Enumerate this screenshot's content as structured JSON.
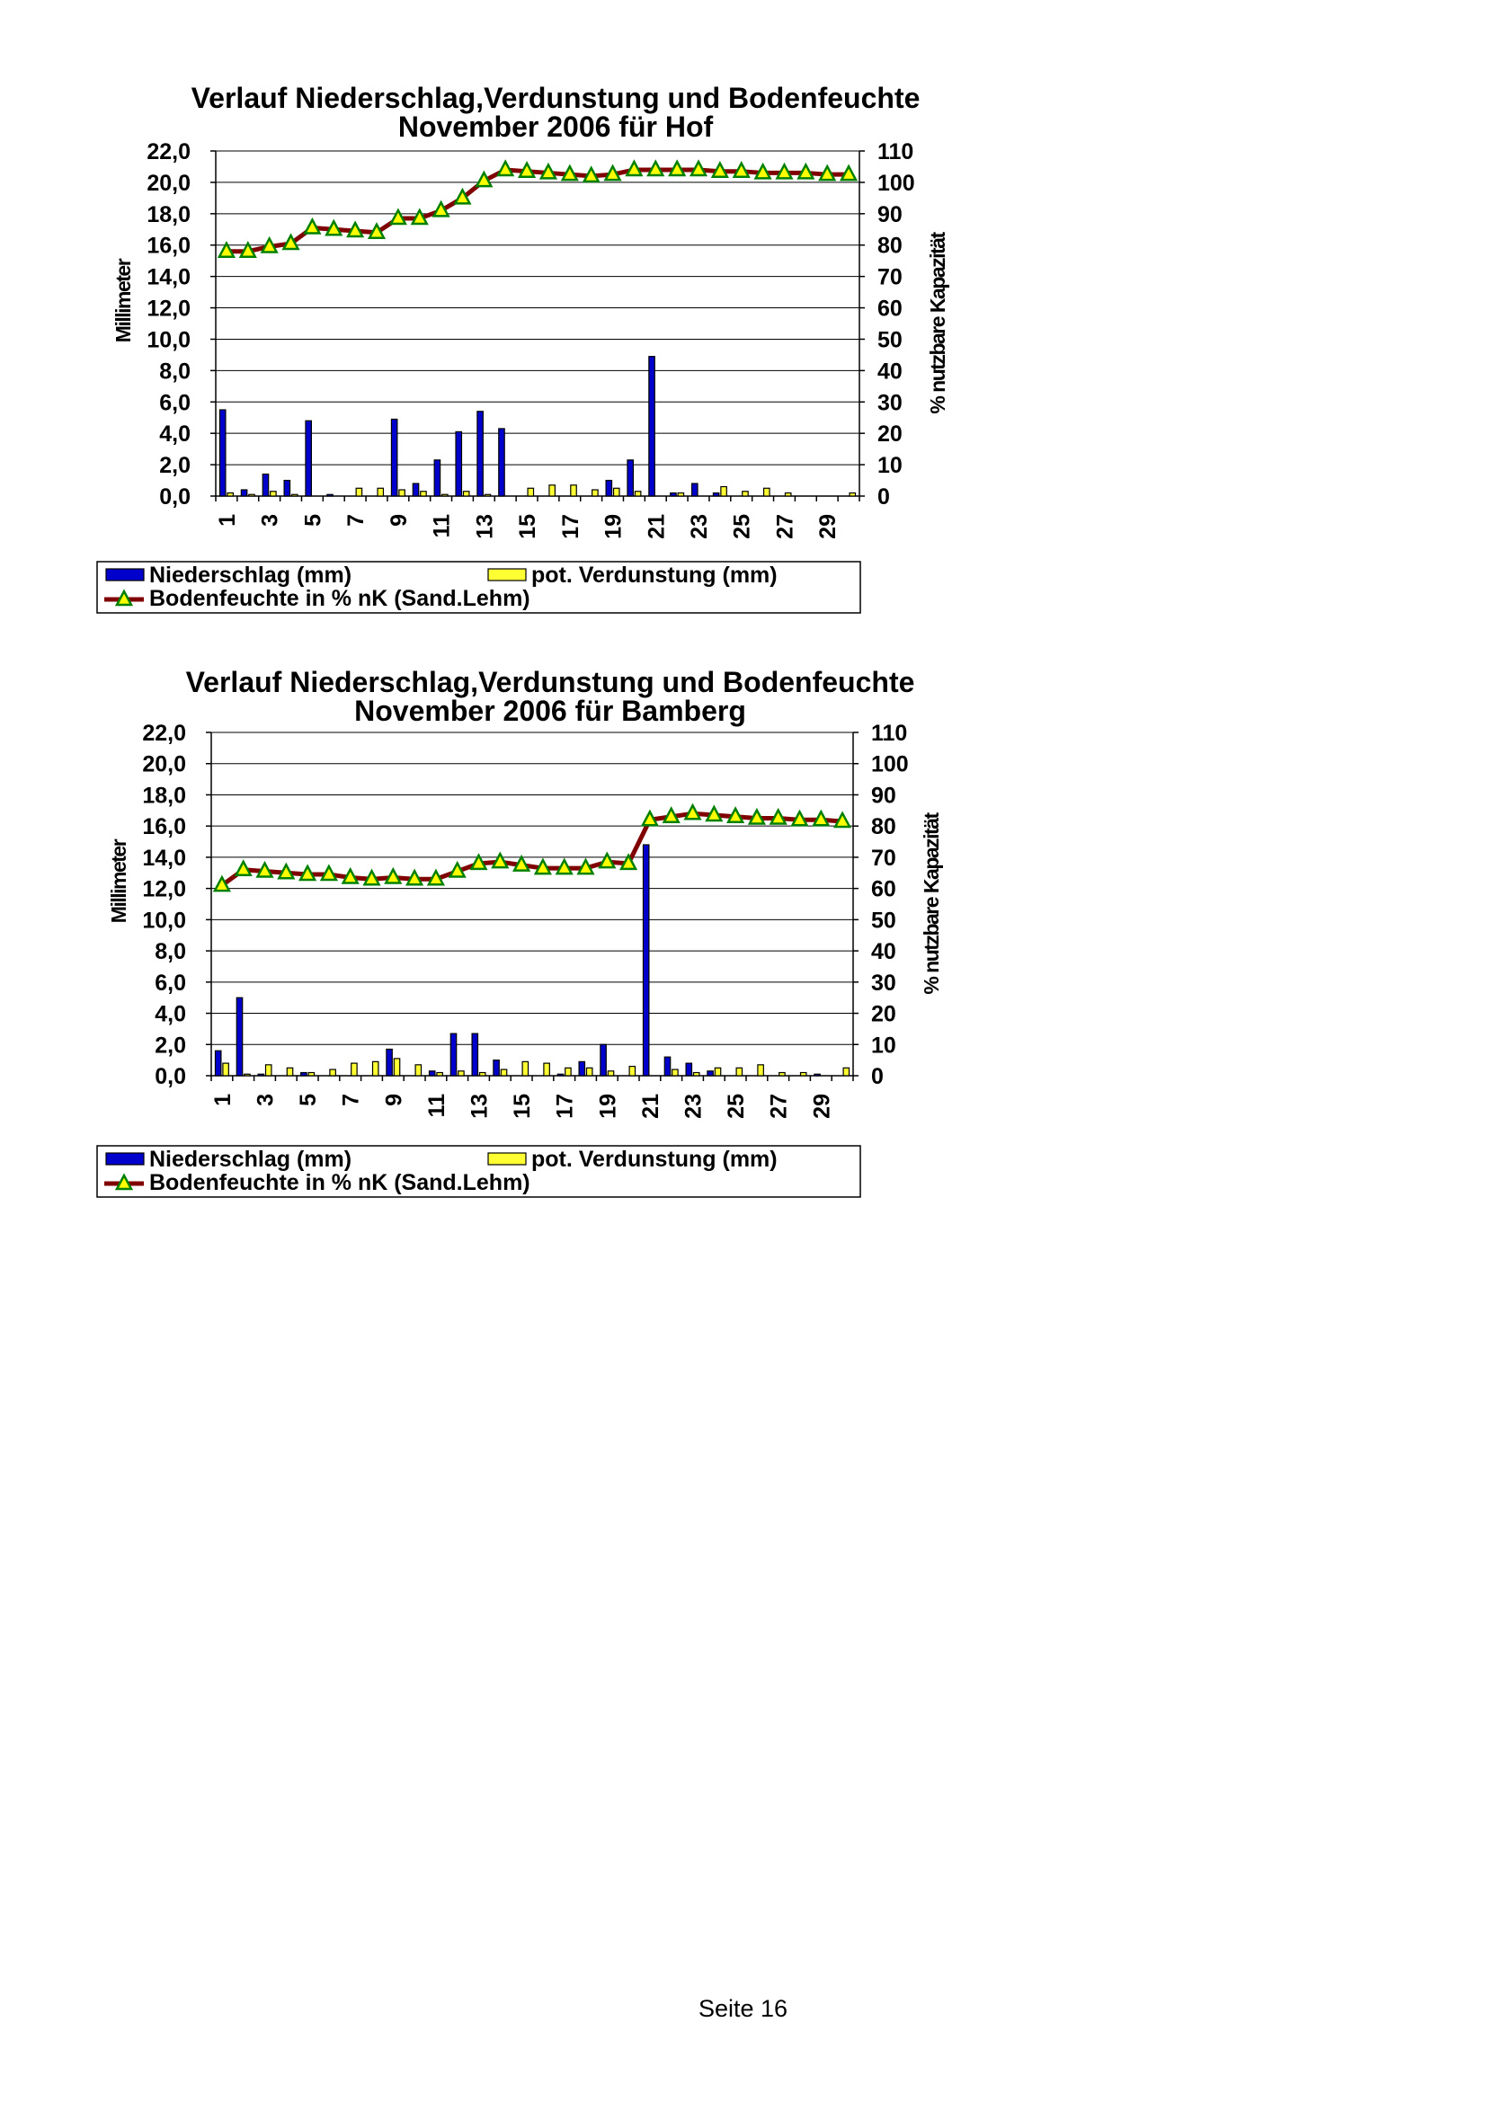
{
  "page": {
    "footer": "Seite 16"
  },
  "colors": {
    "precip": "#0000cc",
    "evap": "#ffff33",
    "soil_line": "#800000",
    "soil_marker": "#ffff00",
    "soil_marker_border": "#008000"
  },
  "chart_data": [
    {
      "type": "bar+line",
      "title_line1": "Verlauf Niederschlag,Verdunstung und Bodenfeuchte",
      "title_line2": "November 2006 für Hof",
      "ylabel": "Millimeter",
      "y2label": "% nutzbare Kapazität",
      "ylim": [
        0,
        22
      ],
      "y2lim": [
        0,
        110
      ],
      "y_ticks": [
        "0,0",
        "2,0",
        "4,0",
        "6,0",
        "8,0",
        "10,0",
        "12,0",
        "14,0",
        "16,0",
        "18,0",
        "20,0",
        "22,0"
      ],
      "y2_ticks": [
        "0",
        "10",
        "20",
        "30",
        "40",
        "50",
        "60",
        "70",
        "80",
        "90",
        "100",
        "110"
      ],
      "x_ticks": [
        "1",
        "3",
        "5",
        "7",
        "9",
        "11",
        "13",
        "15",
        "17",
        "19",
        "21",
        "23",
        "25",
        "27",
        "29"
      ],
      "days": [
        1,
        2,
        3,
        4,
        5,
        6,
        7,
        8,
        9,
        10,
        11,
        12,
        13,
        14,
        15,
        16,
        17,
        18,
        19,
        20,
        21,
        22,
        23,
        24,
        25,
        26,
        27,
        28,
        29,
        30
      ],
      "series": [
        {
          "name": "Niederschlag (mm)",
          "kind": "bar",
          "values": [
            5.5,
            0.4,
            1.4,
            1.0,
            4.8,
            0.1,
            0,
            0,
            4.9,
            0.8,
            2.3,
            4.1,
            5.4,
            4.3,
            0,
            0,
            0,
            0,
            1.0,
            2.3,
            8.9,
            0.2,
            0.8,
            0.2,
            0,
            0,
            0,
            0,
            0,
            0
          ]
        },
        {
          "name": "pot. Verdunstung (mm)",
          "kind": "bar",
          "values": [
            0.2,
            0.1,
            0.3,
            0.1,
            0,
            0,
            0.5,
            0.5,
            0.4,
            0.3,
            0.1,
            0.3,
            0.1,
            0,
            0.5,
            0.7,
            0.7,
            0.4,
            0.5,
            0.3,
            0,
            0.2,
            0,
            0.6,
            0.3,
            0.5,
            0.2,
            0,
            0,
            0.2
          ]
        },
        {
          "name": "Bodenfeuchte in % nK (Sand.Lehm)",
          "kind": "line",
          "values": [
            78,
            78,
            79.5,
            80.5,
            85.5,
            85,
            84.5,
            84,
            88.5,
            88.5,
            91,
            95,
            100.5,
            104,
            103.5,
            103,
            102.5,
            102,
            102.5,
            104,
            104,
            104,
            104,
            103.5,
            103.5,
            103,
            103,
            103,
            102.5,
            102.5
          ]
        }
      ]
    },
    {
      "type": "bar+line",
      "title_line1": "Verlauf Niederschlag,Verdunstung und Bodenfeuchte",
      "title_line2": "November 2006 für Bamberg",
      "ylabel": "Millimeter",
      "y2label": "% nutzbare Kapazität",
      "ylim": [
        0,
        22
      ],
      "y2lim": [
        0,
        110
      ],
      "y_ticks": [
        "0,0",
        "2,0",
        "4,0",
        "6,0",
        "8,0",
        "10,0",
        "12,0",
        "14,0",
        "16,0",
        "18,0",
        "20,0",
        "22,0"
      ],
      "y2_ticks": [
        "0",
        "10",
        "20",
        "30",
        "40",
        "50",
        "60",
        "70",
        "80",
        "90",
        "100",
        "110"
      ],
      "x_ticks": [
        "1",
        "3",
        "5",
        "7",
        "9",
        "11",
        "13",
        "15",
        "17",
        "19",
        "21",
        "23",
        "25",
        "27",
        "29"
      ],
      "days": [
        1,
        2,
        3,
        4,
        5,
        6,
        7,
        8,
        9,
        10,
        11,
        12,
        13,
        14,
        15,
        16,
        17,
        18,
        19,
        20,
        21,
        22,
        23,
        24,
        25,
        26,
        27,
        28,
        29,
        30
      ],
      "series": [
        {
          "name": "Niederschlag (mm)",
          "kind": "bar",
          "values": [
            1.6,
            5.0,
            0.1,
            0,
            0.2,
            0,
            0,
            0,
            1.7,
            0,
            0.3,
            2.7,
            2.7,
            1.0,
            0,
            0,
            0.1,
            0.9,
            2.0,
            0,
            14.8,
            1.2,
            0.8,
            0.3,
            0,
            0,
            0,
            0,
            0.1,
            0
          ]
        },
        {
          "name": "pot. Verdunstung (mm)",
          "kind": "bar",
          "values": [
            0.8,
            0.1,
            0.7,
            0.5,
            0.2,
            0.4,
            0.8,
            0.9,
            1.1,
            0.7,
            0.2,
            0.3,
            0.2,
            0.4,
            0.9,
            0.8,
            0.5,
            0.5,
            0.3,
            0.6,
            0,
            0.4,
            0.2,
            0.5,
            0.5,
            0.7,
            0.2,
            0.2,
            0,
            0.5
          ]
        },
        {
          "name": "Bodenfeuchte in % nK (Sand.Lehm)",
          "kind": "line",
          "values": [
            61,
            66,
            65.5,
            65,
            64.5,
            64.5,
            63.5,
            63,
            63.5,
            63,
            63,
            65.5,
            68,
            68.5,
            67.5,
            66.5,
            66.5,
            66.5,
            68.5,
            68,
            82,
            83,
            84,
            83.5,
            83,
            82.5,
            82.5,
            82,
            82,
            81.5
          ]
        }
      ]
    }
  ]
}
